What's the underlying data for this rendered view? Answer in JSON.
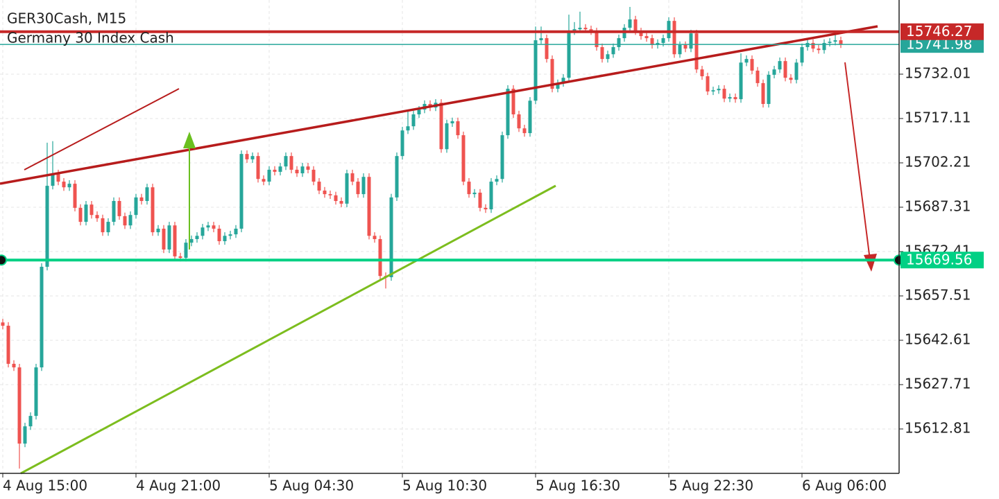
{
  "chart_data": {
    "type": "candlestick",
    "title": "GER30Cash, M15",
    "subtitle": "Germany 30 Index Cash",
    "up_color": "#26a69a",
    "down_color": "#ef5350",
    "grid": true,
    "ylim": [
      15597.9,
      15756.92
    ],
    "yticks": [
      15612.81,
      15627.71,
      15642.61,
      15657.51,
      15672.41,
      15687.31,
      15702.21,
      15717.11,
      15732.01
    ],
    "categories": [
      "4 Aug 15:00",
      null,
      null,
      null,
      null,
      null,
      null,
      null,
      null,
      null,
      null,
      null,
      null,
      null,
      null,
      null,
      null,
      null,
      null,
      null,
      null,
      null,
      null,
      null,
      "4 Aug 21:00",
      null,
      null,
      null,
      null,
      null,
      null,
      null,
      null,
      null,
      null,
      null,
      null,
      null,
      null,
      null,
      null,
      null,
      null,
      null,
      null,
      null,
      null,
      null,
      "5 Aug 04:30",
      null,
      null,
      null,
      null,
      null,
      null,
      null,
      null,
      null,
      null,
      null,
      null,
      null,
      null,
      null,
      null,
      null,
      null,
      null,
      null,
      null,
      null,
      null,
      "5 Aug 10:30",
      null,
      null,
      null,
      null,
      null,
      null,
      null,
      null,
      null,
      null,
      null,
      null,
      null,
      null,
      null,
      null,
      null,
      null,
      null,
      null,
      null,
      null,
      null,
      "5 Aug 16:30",
      null,
      null,
      null,
      null,
      null,
      null,
      null,
      null,
      null,
      null,
      null,
      null,
      null,
      null,
      null,
      null,
      null,
      null,
      null,
      null,
      null,
      null,
      null,
      "5 Aug 22:30",
      null,
      null,
      null,
      null,
      null,
      null,
      null,
      null,
      null,
      null,
      null,
      null,
      null,
      null,
      null,
      null,
      null,
      null,
      null,
      null,
      null,
      null,
      null,
      "6 Aug 06:00",
      null,
      null,
      null,
      null,
      null,
      null,
      null
    ],
    "open": [
      15648.6,
      15647.5,
      15634.7,
      15633.5,
      15607.9,
      15613.7,
      15617.2,
      15633.5,
      15667.3,
      15694.5,
      15698.7,
      15695.9,
      15694.0,
      15695.2,
      15687.1,
      15682.4,
      15688.2,
      15684.7,
      15683.6,
      15678.9,
      15682.4,
      15689.4,
      15684.3,
      15681.2,
      15684.7,
      15690.6,
      15689.4,
      15694.0,
      15678.9,
      15680.1,
      15673.1,
      15681.2,
      15670.8,
      15670.3,
      15675.4,
      15676.6,
      15677.7,
      15680.5,
      15681.2,
      15680.1,
      15675.9,
      15677.7,
      15678.2,
      15680.1,
      15705.2,
      15703.4,
      15704.5,
      15696.8,
      15695.9,
      15699.9,
      15699.2,
      15701.0,
      15704.5,
      15699.9,
      15698.7,
      15701.0,
      15699.9,
      15695.9,
      15692.9,
      15691.7,
      15691.3,
      15689.4,
      15688.5,
      15698.7,
      15695.9,
      15691.7,
      15697.5,
      15677.7,
      15676.6,
      15664.2,
      15663.8,
      15690.6,
      15704.5,
      15713.1,
      15714.5,
      15718.5,
      15720.1,
      15722.0,
      15720.8,
      15722.4,
      15706.8,
      15715.5,
      15716.2,
      15711.5,
      15695.9,
      15691.7,
      15692.2,
      15687.1,
      15686.6,
      15695.9,
      15696.8,
      15711.5,
      15727.1,
      15718.5,
      15713.8,
      15712.2,
      15723.1,
      15743.4,
      15744.1,
      15737.1,
      15727.1,
      15729.0,
      15730.8,
      15746.4,
      15747.1,
      15747.6,
      15747.1,
      15746.4,
      15741.1,
      15737.1,
      15738.7,
      15741.1,
      15744.1,
      15747.6,
      15750.4,
      15746.4,
      15744.8,
      15744.1,
      15741.8,
      15742.5,
      15744.1,
      15749.9,
      15738.7,
      15741.8,
      15740.6,
      15745.7,
      15733.6,
      15731.3,
      15726.2,
      15726.6,
      15727.1,
      15723.8,
      15724.3,
      15723.6,
      15735.9,
      15737.1,
      15733.2,
      15729.0,
      15722.0,
      15731.8,
      15733.6,
      15736.4,
      15730.8,
      15730.1,
      15735.9,
      15741.1,
      15742.5,
      15740.6,
      15740.1,
      15742.5,
      15742.9,
      15743.4
    ],
    "high": [
      15649.8,
      15648.7,
      15635.9,
      15634.7,
      15614.9,
      15618.4,
      15634.7,
      15668.5,
      15709.0,
      15709.5,
      15699.9,
      15697.1,
      15696.4,
      15696.4,
      15688.3,
      15689.4,
      15689.4,
      15685.9,
      15684.8,
      15683.6,
      15690.6,
      15690.6,
      15685.5,
      15685.9,
      15691.8,
      15691.8,
      15695.2,
      15695.2,
      15681.3,
      15681.3,
      15682.4,
      15682.4,
      15672.0,
      15676.6,
      15677.8,
      15678.9,
      15681.7,
      15682.4,
      15682.4,
      15681.3,
      15678.9,
      15679.4,
      15681.3,
      15706.4,
      15706.4,
      15705.7,
      15705.7,
      15698.0,
      15701.1,
      15701.1,
      15702.2,
      15705.7,
      15705.7,
      15701.1,
      15702.2,
      15702.2,
      15701.1,
      15697.1,
      15694.1,
      15692.9,
      15692.5,
      15690.6,
      15699.9,
      15699.9,
      15697.1,
      15698.7,
      15698.7,
      15678.9,
      15677.8,
      15665.4,
      15691.8,
      15705.7,
      15714.3,
      15720.0,
      15719.7,
      15721.3,
      15723.2,
      15723.2,
      15723.6,
      15723.6,
      15716.7,
      15717.4,
      15717.4,
      15712.7,
      15697.1,
      15693.4,
      15693.4,
      15688.3,
      15697.1,
      15698.0,
      15712.7,
      15728.3,
      15728.3,
      15719.7,
      15715.0,
      15724.3,
      15748.0,
      15748.0,
      15745.3,
      15738.3,
      15730.2,
      15732.0,
      15752.0,
      15749.5,
      15753.0,
      15748.8,
      15748.3,
      15747.6,
      15742.3,
      15739.9,
      15742.3,
      15745.3,
      15748.8,
      15754.6,
      15751.6,
      15747.6,
      15746.0,
      15745.3,
      15743.7,
      15745.3,
      15751.1,
      15751.1,
      15743.0,
      15743.0,
      15746.9,
      15746.9,
      15734.8,
      15732.5,
      15727.8,
      15728.3,
      15728.3,
      15725.5,
      15725.5,
      15739.0,
      15738.3,
      15738.3,
      15734.4,
      15730.2,
      15733.0,
      15734.8,
      15737.6,
      15737.6,
      15732.0,
      15737.1,
      15742.3,
      15743.7,
      15743.7,
      15741.8,
      15743.7,
      15744.1,
      15745.6,
      15744.6
    ],
    "low": [
      15646.3,
      15633.5,
      15632.3,
      15599.5,
      15606.7,
      15612.5,
      15616.0,
      15632.3,
      15666.1,
      15693.3,
      15694.7,
      15692.8,
      15692.8,
      15685.9,
      15681.2,
      15681.2,
      15683.5,
      15682.4,
      15677.7,
      15677.7,
      15681.2,
      15683.1,
      15680.0,
      15680.0,
      15683.5,
      15688.2,
      15688.2,
      15677.7,
      15677.7,
      15671.9,
      15671.9,
      15669.6,
      15669.1,
      15669.1,
      15674.2,
      15675.4,
      15676.5,
      15679.3,
      15678.9,
      15674.7,
      15674.7,
      15676.5,
      15677.0,
      15678.9,
      15702.2,
      15702.2,
      15695.6,
      15694.7,
      15694.7,
      15698.0,
      15698.0,
      15699.8,
      15698.7,
      15697.5,
      15697.5,
      15698.7,
      15694.7,
      15691.7,
      15690.5,
      15690.1,
      15688.2,
      15687.3,
      15687.3,
      15694.7,
      15690.5,
      15690.5,
      15676.5,
      15675.4,
      15663.0,
      15660.0,
      15662.6,
      15689.4,
      15703.3,
      15711.9,
      15713.3,
      15717.3,
      15718.9,
      15719.6,
      15719.6,
      15705.6,
      15705.6,
      15714.3,
      15710.3,
      15694.7,
      15690.5,
      15690.5,
      15685.9,
      15685.4,
      15685.4,
      15694.7,
      15695.6,
      15710.3,
      15717.3,
      15712.6,
      15711.0,
      15711.0,
      15721.9,
      15742.2,
      15735.9,
      15725.9,
      15725.9,
      15727.8,
      15729.6,
      15745.2,
      15745.9,
      15745.9,
      15745.2,
      15739.9,
      15735.9,
      15735.9,
      15737.5,
      15739.9,
      15742.9,
      15746.4,
      15745.2,
      15743.6,
      15742.9,
      15740.6,
      15740.6,
      15741.3,
      15742.9,
      15737.5,
      15737.5,
      15739.4,
      15739.4,
      15732.4,
      15730.1,
      15725.0,
      15725.0,
      15725.4,
      15722.6,
      15722.6,
      15722.4,
      15722.4,
      15734.7,
      15732.0,
      15727.8,
      15720.8,
      15720.8,
      15730.6,
      15732.4,
      15729.6,
      15728.9,
      15728.9,
      15734.7,
      15739.9,
      15739.4,
      15738.9,
      15738.9,
      15741.3,
      15741.7,
      15740.8
    ],
    "close": [
      15647.5,
      15634.7,
      15633.5,
      15607.9,
      15613.7,
      15617.2,
      15633.5,
      15667.3,
      15694.5,
      15698.7,
      15695.9,
      15694.0,
      15695.2,
      15687.1,
      15682.4,
      15688.2,
      15684.7,
      15683.6,
      15678.9,
      15682.4,
      15689.4,
      15684.3,
      15681.2,
      15684.7,
      15690.6,
      15689.4,
      15694.0,
      15678.9,
      15680.1,
      15673.1,
      15681.2,
      15670.8,
      15670.3,
      15675.4,
      15676.6,
      15677.7,
      15680.5,
      15681.2,
      15680.1,
      15675.9,
      15677.7,
      15678.2,
      15680.1,
      15705.2,
      15703.4,
      15704.5,
      15696.8,
      15695.9,
      15699.9,
      15699.2,
      15701.0,
      15704.5,
      15699.9,
      15698.7,
      15701.0,
      15699.9,
      15695.9,
      15692.9,
      15691.7,
      15691.3,
      15689.4,
      15688.5,
      15698.7,
      15695.9,
      15691.7,
      15697.5,
      15677.7,
      15676.6,
      15664.2,
      15663.8,
      15690.6,
      15704.5,
      15713.1,
      15714.5,
      15718.5,
      15720.1,
      15722.0,
      15720.8,
      15722.4,
      15706.8,
      15715.5,
      15716.2,
      15711.5,
      15695.9,
      15691.7,
      15692.2,
      15687.1,
      15686.6,
      15695.9,
      15696.8,
      15711.5,
      15727.1,
      15718.5,
      15713.8,
      15712.2,
      15723.1,
      15743.4,
      15744.1,
      15737.1,
      15727.1,
      15729.0,
      15730.8,
      15746.4,
      15747.1,
      15747.6,
      15747.1,
      15746.4,
      15741.1,
      15737.1,
      15738.7,
      15741.1,
      15744.1,
      15747.6,
      15750.4,
      15746.4,
      15744.8,
      15744.1,
      15741.8,
      15742.5,
      15744.1,
      15749.9,
      15738.7,
      15741.8,
      15740.6,
      15745.7,
      15733.6,
      15731.3,
      15726.2,
      15726.6,
      15727.1,
      15723.8,
      15724.3,
      15723.6,
      15735.9,
      15737.1,
      15733.2,
      15729.0,
      15722.0,
      15731.8,
      15733.6,
      15736.4,
      15730.8,
      15730.1,
      15735.9,
      15741.1,
      15742.5,
      15740.6,
      15740.1,
      15742.5,
      15742.9,
      15743.4,
      15742.0
    ],
    "price_lines": [
      {
        "value": 15741.98,
        "color": "#26a69a"
      },
      {
        "value": 15746.27,
        "color": "#c62828"
      },
      {
        "value": 15669.56,
        "color": "#00d084"
      }
    ]
  }
}
